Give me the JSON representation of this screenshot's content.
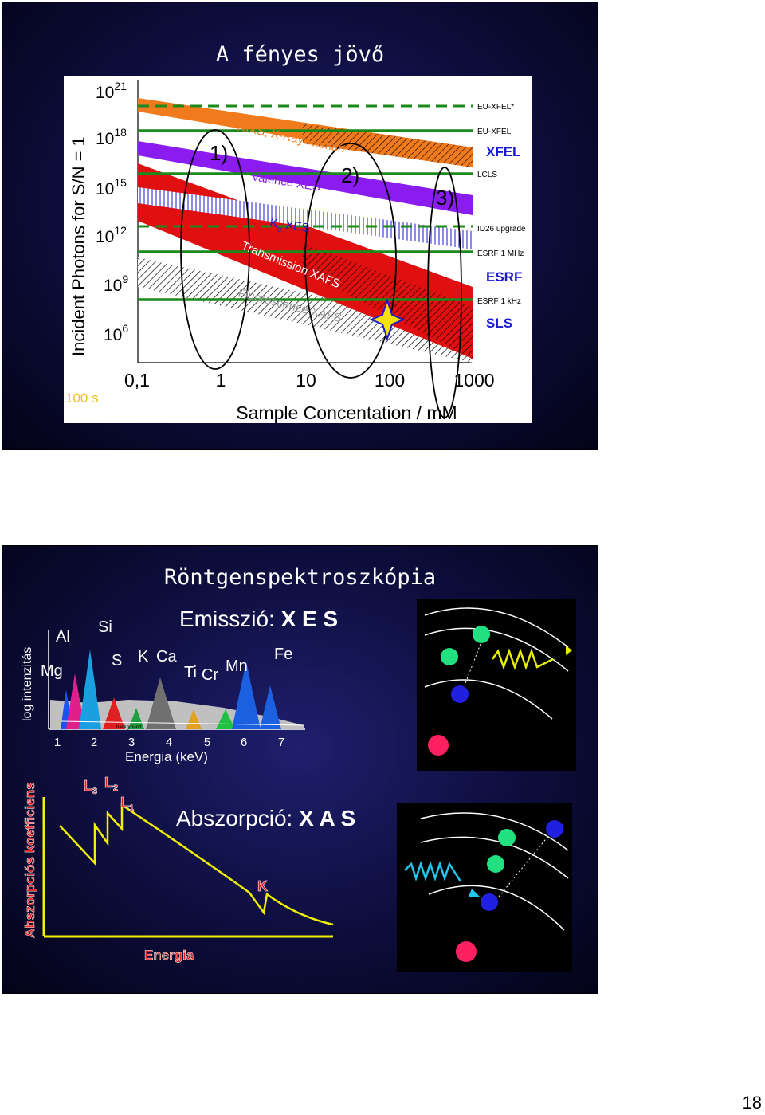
{
  "slide1": {
    "title": "A fényes jövő",
    "y_axis_label": "Incident Photons for S/N = 1",
    "x_axis_label": "Sample Concentation / mM",
    "x_ticks": [
      "0,1",
      "1",
      "10",
      "100",
      "1000"
    ],
    "y_ticks": [
      {
        "base": "10",
        "exp": "21"
      },
      {
        "base": "10",
        "exp": "18"
      },
      {
        "base": "10",
        "exp": "15"
      },
      {
        "base": "10",
        "exp": "12"
      },
      {
        "base": "10",
        "exp": "9"
      },
      {
        "base": "10",
        "exp": "6"
      }
    ],
    "corner_label": "100 s",
    "bands": {
      "rixs": "RIXS, X-Ray Raman",
      "valence": "Valence XES",
      "kalpha_k": "K",
      "kalpha_a": "α",
      "kalpha_rest": " XES",
      "transmission": "Transmission XAFS",
      "fluorescence": "Fluorescence XAFS"
    },
    "region_labels": [
      "1)",
      "2)",
      "3)"
    ],
    "source_labels": {
      "eu_xfel_star": "EU-XFEL*",
      "eu_xfel": "EU-XFEL",
      "xfel": "XFEL",
      "lcls": "LCLS",
      "id26": "ID26 upgrade",
      "esrf_1mhz": "ESRF 1 MHz",
      "esrf": "ESRF",
      "esrf_1khz": "ESRF 1 kHz",
      "sls": "SLS"
    },
    "colors": {
      "orange": "#f07a1c",
      "purple": "#8a1cf0",
      "red": "#e01010",
      "green": "#1a8a1a",
      "blue": "#1a1ad0"
    }
  },
  "slide2": {
    "title": "Röntgenspektroszkópia",
    "emission_prefix": "Emisszió: ",
    "emission_abbr": "X E S",
    "absorption_prefix": "Abszorpció: ",
    "absorption_abbr": "X A S",
    "xes_y_label": "log intenzitás",
    "xes_x_label": "Energia (keV)",
    "xes_x_ticks": [
      "1",
      "2",
      "3",
      "4",
      "5",
      "6",
      "7"
    ],
    "element_labels": {
      "mg": "Mg",
      "al": "Al",
      "si": "Si",
      "s": "S",
      "k": "K",
      "ca": "Ca",
      "ti": "Ti",
      "cr": "Cr",
      "mn": "Mn",
      "fe": "Fe"
    },
    "background_tag": "background",
    "xas_y_label": "Abszorpciós koefficiens",
    "xas_x_label": "Energia",
    "edges": {
      "l3": "L3",
      "l2": "L2",
      "l1": "L1",
      "k": "K"
    }
  },
  "page_number": "18"
}
